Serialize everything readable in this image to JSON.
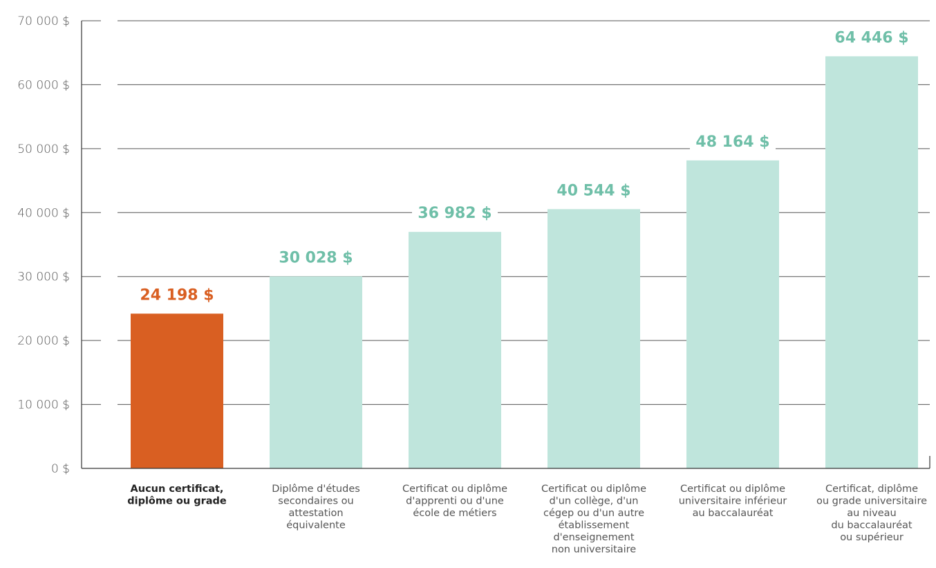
{
  "chart_data": {
    "type": "bar",
    "title": "",
    "xlabel": "",
    "ylabel": "",
    "ylim": [
      0,
      70000
    ],
    "yticks": [
      0,
      10000,
      20000,
      30000,
      40000,
      50000,
      60000,
      70000
    ],
    "ytick_labels": [
      "0 $",
      "10 000 $",
      "20 000 $",
      "30 000 $",
      "40 000 $",
      "50 000 $",
      "60 000 $",
      "70 000 $"
    ],
    "grid": true,
    "categories": [
      [
        "Aucun certificat,",
        "diplôme ou grade"
      ],
      [
        "Diplôme d'études",
        "secondaires ou",
        "attestation",
        "équivalente"
      ],
      [
        "Certificat ou diplôme",
        "d'apprenti ou d'une",
        "école de métiers"
      ],
      [
        "Certificat ou diplôme",
        "d'un collège, d'un",
        "cégep ou d'un autre",
        "établissement",
        "d'enseignement",
        "non universitaire"
      ],
      [
        "Certificat ou diplôme",
        "universitaire inférieur",
        "au baccalauréat"
      ],
      [
        "Certificat, diplôme",
        "ou grade universitaire",
        "au niveau",
        "du baccalauréat",
        "ou supérieur"
      ]
    ],
    "values": [
      24198,
      30028,
      36982,
      40544,
      48164,
      64446
    ],
    "value_labels": [
      "24 198 $",
      "30 028 $",
      "36 982 $",
      "40 544 $",
      "48 164 $",
      "64 446 $"
    ],
    "highlight_index": 0,
    "colors": {
      "highlight_bar": "#d95f22",
      "bar": "#bfe5dc",
      "value_label": "#6fbfa8",
      "axis": "#333333"
    }
  }
}
